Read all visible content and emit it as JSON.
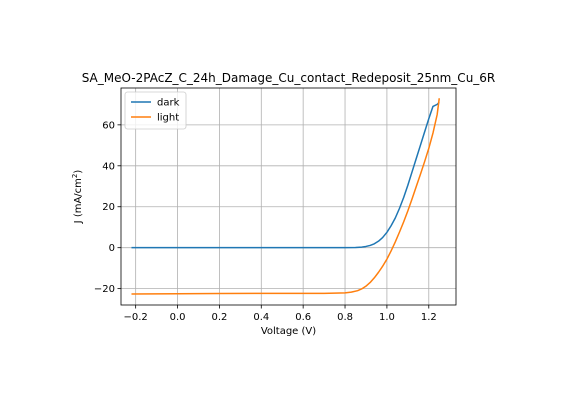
{
  "chart_data": {
    "type": "line",
    "title": "SA_MeO-2PAcZ_C_24h_Damage_Cu_contact_Redeposit_25nm_Cu_6R",
    "xlabel": "Voltage (V)",
    "ylabel_main": "J (mA/cm",
    "ylabel_sup": "2",
    "ylabel_close": ")",
    "xlim": [
      -0.27,
      1.33
    ],
    "ylim": [
      -28,
      78
    ],
    "grid": true,
    "legend_position": "upper-left",
    "xticks": [
      -0.2,
      0.0,
      0.2,
      0.4,
      0.6,
      0.8,
      1.0,
      1.2
    ],
    "xtick_labels": [
      "−0.2",
      "0.0",
      "0.2",
      "0.4",
      "0.6",
      "0.8",
      "1.0",
      "1.2"
    ],
    "yticks": [
      -20,
      0,
      20,
      40,
      60
    ],
    "ytick_labels": [
      "−20",
      "0",
      "20",
      "40",
      "60"
    ],
    "series": [
      {
        "name": "dark",
        "color": "#1f77b4",
        "x": [
          -0.22,
          0.0,
          0.2,
          0.4,
          0.6,
          0.7,
          0.8,
          0.85,
          0.88,
          0.9,
          0.92,
          0.94,
          0.96,
          0.98,
          1.0,
          1.02,
          1.04,
          1.06,
          1.08,
          1.1,
          1.12,
          1.14,
          1.16,
          1.18,
          1.2,
          1.22,
          1.24,
          1.25
        ],
        "y": [
          0,
          0,
          0,
          0,
          0,
          0,
          0,
          0.1,
          0.3,
          0.6,
          1.1,
          1.9,
          3.2,
          5.0,
          7.5,
          10.7,
          14.5,
          19.2,
          24.5,
          30.5,
          37.0,
          43.5,
          50.0,
          56.5,
          63.0,
          69.0,
          70.0,
          71.0
        ]
      },
      {
        "name": "light",
        "color": "#ff7f0e",
        "x": [
          -0.22,
          0.0,
          0.2,
          0.4,
          0.6,
          0.7,
          0.75,
          0.8,
          0.83,
          0.86,
          0.88,
          0.9,
          0.92,
          0.94,
          0.96,
          0.98,
          1.0,
          1.02,
          1.04,
          1.06,
          1.08,
          1.1,
          1.12,
          1.14,
          1.16,
          1.18,
          1.2,
          1.22,
          1.24,
          1.25
        ],
        "y": [
          -22.6,
          -22.5,
          -22.4,
          -22.3,
          -22.3,
          -22.3,
          -22.2,
          -22.1,
          -21.7,
          -21.0,
          -20.1,
          -18.8,
          -17.0,
          -14.7,
          -12.0,
          -9.0,
          -5.6,
          -1.6,
          2.8,
          7.6,
          12.6,
          18.0,
          23.8,
          29.8,
          35.8,
          42.0,
          48.5,
          56.0,
          65.0,
          73.0
        ]
      }
    ]
  }
}
